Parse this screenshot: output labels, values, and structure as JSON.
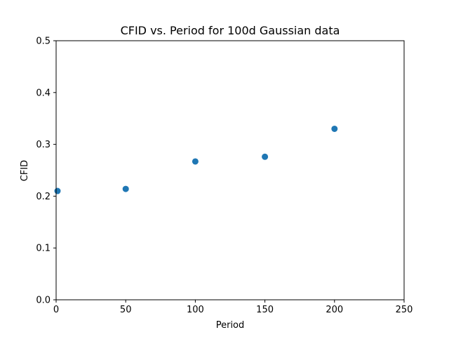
{
  "chart_data": {
    "type": "scatter",
    "title": "CFID vs. Period for 100d Gaussian data",
    "xlabel": "Period",
    "ylabel": "CFID",
    "xlim": [
      0,
      250
    ],
    "ylim": [
      0,
      0.5
    ],
    "xticks": [
      0,
      50,
      100,
      150,
      200,
      250
    ],
    "xtick_labels": [
      "0",
      "50",
      "100",
      "150",
      "200",
      "250"
    ],
    "yticks": [
      0.0,
      0.1,
      0.2,
      0.3,
      0.4,
      0.5
    ],
    "ytick_labels": [
      "0.0",
      "0.1",
      "0.2",
      "0.3",
      "0.4",
      "0.5"
    ],
    "grid": false,
    "series": [
      {
        "name": "CFID",
        "color": "#1f77b4",
        "x": [
          1,
          50,
          100,
          150,
          200
        ],
        "y": [
          0.21,
          0.214,
          0.267,
          0.276,
          0.33
        ]
      }
    ]
  }
}
